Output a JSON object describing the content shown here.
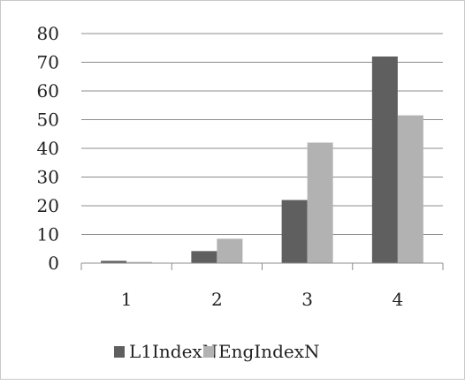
{
  "chart_data": {
    "type": "bar",
    "title": "",
    "xlabel": "",
    "ylabel": "",
    "categories": [
      "1",
      "2",
      "3",
      "4"
    ],
    "series": [
      {
        "name": "L1IndexN",
        "color": "#5f5f5f",
        "values": [
          0.8,
          4.2,
          22,
          72
        ]
      },
      {
        "name": "EngIndexN",
        "color": "#b2b2b2",
        "values": [
          0.4,
          8.5,
          42,
          51.5
        ]
      }
    ],
    "ylim": [
      0,
      80
    ],
    "yticks": [
      "0",
      "10",
      "20",
      "30",
      "40",
      "50",
      "60",
      "70",
      "80"
    ],
    "grid": true,
    "legend": "bottom"
  }
}
